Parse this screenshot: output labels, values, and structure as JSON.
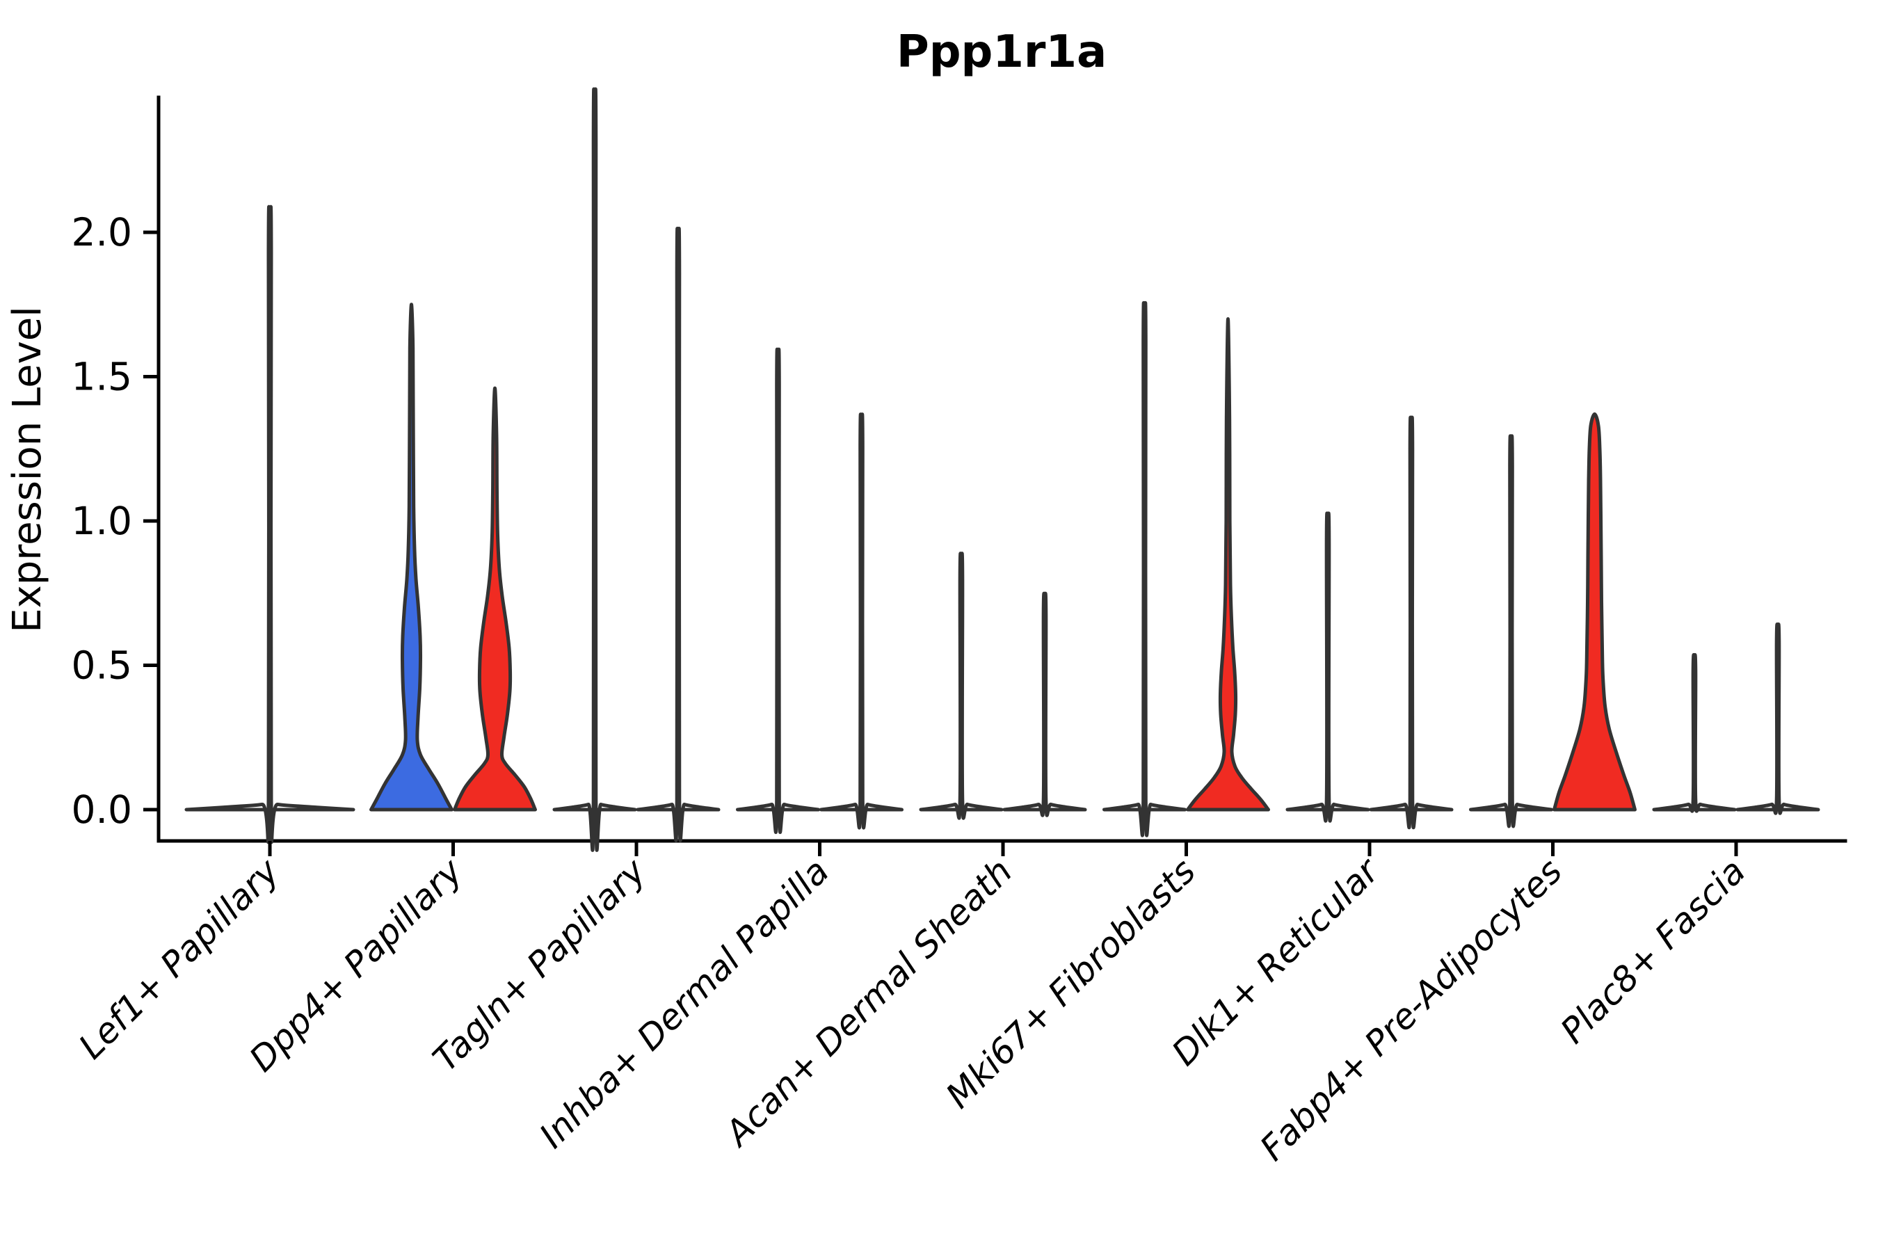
{
  "chart_data": {
    "type": "violin",
    "title": "Ppp1r1a",
    "ylabel": "Expression Level",
    "ytick_values": [
      0.0,
      0.5,
      1.0,
      1.5,
      2.0
    ],
    "ytick_labels": [
      "0.0",
      "0.5",
      "1.0",
      "1.5",
      "2.0"
    ],
    "ylim": [
      -0.11,
      2.47
    ],
    "grid": "off",
    "legend": "none",
    "colors": {
      "blue_fill": "#3C6BE1",
      "red_fill": "#F02B22",
      "outline": "#333333",
      "axis": "#000000",
      "background": "#ffffff"
    },
    "categories": [
      "Lef1+ Papillary",
      "Dpp4+ Papillary",
      "Tagln+ Papillary",
      "Inhba+ Dermal Papilla",
      "Acan+ Dermal Sheath",
      "Mki67+ Fibroblasts",
      "Dlk1+ Reticular",
      "Fabp4+ Pre-Adipocytes",
      "Plac8+ Fascia"
    ],
    "groups": [
      {
        "category": "Lef1+ Papillary",
        "violins": [
          {
            "position": "center",
            "fill": null,
            "max_expression": 1.98,
            "profile": [
              [
                0,
                120
              ],
              [
                0.008,
                68
              ],
              [
                0.018,
                11
              ],
              [
                0.032,
                2
              ],
              [
                1.93,
                2
              ],
              [
                1.98,
                0
              ]
            ]
          }
        ]
      },
      {
        "category": "Dpp4+ Papillary",
        "violins": [
          {
            "position": "left",
            "fill": "#3C6BE1",
            "max_expression": 1.75,
            "profile": [
              [
                0,
                58
              ],
              [
                0.04,
                49
              ],
              [
                0.09,
                38
              ],
              [
                0.14,
                25
              ],
              [
                0.19,
                13
              ],
              [
                0.24,
                8.5
              ],
              [
                0.32,
                9.5
              ],
              [
                0.42,
                12
              ],
              [
                0.52,
                13
              ],
              [
                0.6,
                12.5
              ],
              [
                0.7,
                10
              ],
              [
                0.8,
                6.5
              ],
              [
                0.9,
                4.5
              ],
              [
                1.05,
                3.2
              ],
              [
                1.35,
                2.6
              ],
              [
                1.6,
                2.2
              ],
              [
                1.75,
                0
              ]
            ]
          },
          {
            "position": "right",
            "fill": "#F02B22",
            "max_expression": 1.46,
            "profile": [
              [
                0,
                58
              ],
              [
                0.04,
                51
              ],
              [
                0.08,
                42
              ],
              [
                0.12,
                29
              ],
              [
                0.16,
                15
              ],
              [
                0.19,
                10
              ],
              [
                0.25,
                13
              ],
              [
                0.33,
                18
              ],
              [
                0.41,
                21.5
              ],
              [
                0.48,
                22
              ],
              [
                0.56,
                20.5
              ],
              [
                0.65,
                16
              ],
              [
                0.74,
                10.5
              ],
              [
                0.83,
                6.5
              ],
              [
                0.95,
                4
              ],
              [
                1.1,
                3
              ],
              [
                1.3,
                2.4
              ],
              [
                1.46,
                0
              ]
            ]
          }
        ]
      },
      {
        "category": "Tagln+ Papillary",
        "violins": [
          {
            "position": "left",
            "fill": null,
            "max_expression": 2.36,
            "profile": [
              [
                0,
                58
              ],
              [
                0.008,
                33
              ],
              [
                0.018,
                9
              ],
              [
                0.032,
                1.8
              ],
              [
                2.31,
                1.8
              ],
              [
                2.36,
                0
              ]
            ]
          },
          {
            "position": "right",
            "fill": null,
            "max_expression": 1.91,
            "profile": [
              [
                0,
                58
              ],
              [
                0.008,
                33
              ],
              [
                0.018,
                9
              ],
              [
                0.032,
                1.8
              ],
              [
                1.86,
                1.8
              ],
              [
                1.91,
                0
              ]
            ]
          }
        ]
      },
      {
        "category": "Inhba+ Dermal Papilla",
        "violins": [
          {
            "position": "left",
            "fill": null,
            "max_expression": 1.52,
            "profile": [
              [
                0,
                58
              ],
              [
                0.008,
                33
              ],
              [
                0.018,
                9
              ],
              [
                0.032,
                1.8
              ],
              [
                1.47,
                1.8
              ],
              [
                1.52,
                0
              ]
            ]
          },
          {
            "position": "right",
            "fill": null,
            "max_expression": 1.31,
            "profile": [
              [
                0,
                58
              ],
              [
                0.008,
                33
              ],
              [
                0.018,
                9
              ],
              [
                0.032,
                1.8
              ],
              [
                1.26,
                1.8
              ],
              [
                1.31,
                0
              ]
            ]
          }
        ]
      },
      {
        "category": "Acan+ Dermal Sheath",
        "violins": [
          {
            "position": "left",
            "fill": null,
            "max_expression": 0.86,
            "profile": [
              [
                0,
                58
              ],
              [
                0.008,
                33
              ],
              [
                0.018,
                9
              ],
              [
                0.032,
                1.8
              ],
              [
                0.81,
                1.8
              ],
              [
                0.86,
                0
              ]
            ]
          },
          {
            "position": "right",
            "fill": null,
            "max_expression": 0.73,
            "profile": [
              [
                0,
                58
              ],
              [
                0.008,
                33
              ],
              [
                0.018,
                9
              ],
              [
                0.032,
                1.8
              ],
              [
                0.68,
                1.8
              ],
              [
                0.73,
                0
              ]
            ]
          }
        ]
      },
      {
        "category": "Mki67+ Fibroblasts",
        "violins": [
          {
            "position": "left",
            "fill": null,
            "max_expression": 1.67,
            "profile": [
              [
                0,
                58
              ],
              [
                0.008,
                33
              ],
              [
                0.018,
                9
              ],
              [
                0.032,
                1.8
              ],
              [
                1.62,
                1.8
              ],
              [
                1.67,
                0
              ]
            ]
          },
          {
            "position": "right",
            "fill": "#F02B22",
            "max_expression": 1.7,
            "profile": [
              [
                0,
                58
              ],
              [
                0.035,
                47
              ],
              [
                0.07,
                34
              ],
              [
                0.11,
                20
              ],
              [
                0.15,
                10
              ],
              [
                0.2,
                5.5
              ],
              [
                0.26,
                8
              ],
              [
                0.33,
                10.5
              ],
              [
                0.4,
                11
              ],
              [
                0.48,
                9.5
              ],
              [
                0.56,
                7
              ],
              [
                0.66,
                5
              ],
              [
                0.78,
                3.5
              ],
              [
                1.0,
                2.6
              ],
              [
                1.35,
                2.2
              ],
              [
                1.7,
                0
              ]
            ]
          }
        ]
      },
      {
        "category": "Dlk1+ Reticular",
        "violins": [
          {
            "position": "left",
            "fill": null,
            "max_expression": 0.99,
            "profile": [
              [
                0,
                58
              ],
              [
                0.008,
                33
              ],
              [
                0.018,
                9
              ],
              [
                0.032,
                1.8
              ],
              [
                0.94,
                1.8
              ],
              [
                0.99,
                0
              ]
            ]
          },
          {
            "position": "right",
            "fill": null,
            "max_expression": 1.3,
            "profile": [
              [
                0,
                58
              ],
              [
                0.008,
                33
              ],
              [
                0.018,
                9
              ],
              [
                0.032,
                1.8
              ],
              [
                1.25,
                1.8
              ],
              [
                1.3,
                0
              ]
            ]
          }
        ]
      },
      {
        "category": "Fabp4+ Pre-Adipocytes",
        "violins": [
          {
            "position": "left",
            "fill": null,
            "max_expression": 1.24,
            "profile": [
              [
                0,
                58
              ],
              [
                0.008,
                33
              ],
              [
                0.018,
                9
              ],
              [
                0.032,
                1.8
              ],
              [
                1.19,
                1.8
              ],
              [
                1.24,
                0
              ]
            ]
          },
          {
            "position": "right",
            "fill": "#F02B22",
            "max_expression": 1.37,
            "profile": [
              [
                0,
                58
              ],
              [
                0.06,
                51
              ],
              [
                0.12,
                42
              ],
              [
                0.2,
                31
              ],
              [
                0.28,
                21
              ],
              [
                0.36,
                15
              ],
              [
                0.46,
                12
              ],
              [
                0.56,
                11
              ],
              [
                0.72,
                10
              ],
              [
                0.88,
                9.5
              ],
              [
                1.02,
                9
              ],
              [
                1.14,
                8.5
              ],
              [
                1.25,
                7.5
              ],
              [
                1.33,
                5.5
              ],
              [
                1.37,
                0
              ]
            ]
          }
        ]
      },
      {
        "category": "Plac8+ Fascia",
        "violins": [
          {
            "position": "left",
            "fill": null,
            "max_expression": 0.53,
            "profile": [
              [
                0,
                58
              ],
              [
                0.008,
                33
              ],
              [
                0.018,
                9
              ],
              [
                0.032,
                1.8
              ],
              [
                0.48,
                1.8
              ],
              [
                0.53,
                0
              ]
            ]
          },
          {
            "position": "right",
            "fill": null,
            "max_expression": 0.63,
            "profile": [
              [
                0,
                58
              ],
              [
                0.008,
                33
              ],
              [
                0.018,
                9
              ],
              [
                0.032,
                1.8
              ],
              [
                0.58,
                1.8
              ],
              [
                0.63,
                0
              ]
            ]
          }
        ]
      }
    ]
  }
}
